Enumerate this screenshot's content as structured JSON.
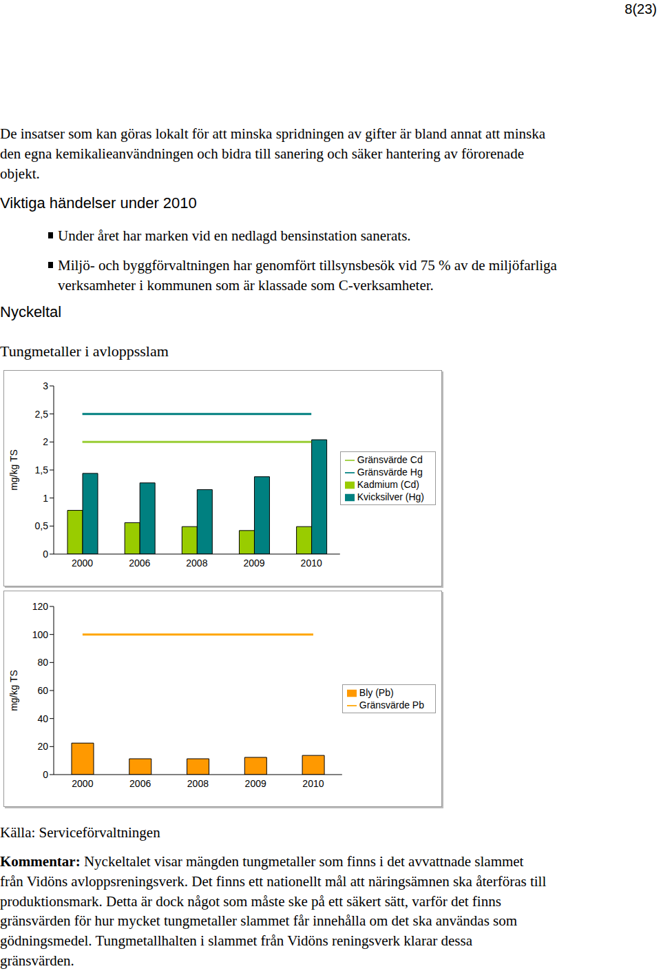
{
  "page_number": "8(23)",
  "intro": [
    "De insatser som kan göras lokalt för att minska spridningen av gifter är bland annat att minska",
    "den egna kemikalieanvändningen och bidra till sanering och säker hantering av förorenade",
    "objekt."
  ],
  "heading": "Viktiga händelser under 2010",
  "bullets": [
    [
      "Under året har marken vid en nedlagd bensinstation sanerats."
    ],
    [
      "Miljö- och byggförvaltningen har genomfört tillsynsbesök vid 75 % av de miljöfarliga",
      "verksamheter i kommunen som är klassade som C-verksamheter."
    ]
  ],
  "section": "Nyckeltal",
  "chart_heading": "Tungmetaller i avloppsslam",
  "chart_data": [
    {
      "type": "bar",
      "y_label": "mg/kg TS",
      "categories": [
        "2000",
        "2006",
        "2008",
        "2009",
        "2010"
      ],
      "series": [
        {
          "name": "Kadmium (Cd)",
          "type": "bar",
          "color": "#99cc00",
          "values": [
            0.78,
            0.56,
            0.49,
            0.42,
            0.49
          ]
        },
        {
          "name": "Kvicksilver (Hg)",
          "type": "bar",
          "color": "#008080",
          "values": [
            1.44,
            1.27,
            1.15,
            1.38,
            2.04
          ]
        },
        {
          "name": "Gränsvärde Cd",
          "type": "line",
          "color": "#99cc33",
          "values": [
            2,
            2,
            2,
            2,
            2
          ]
        },
        {
          "name": "Gränsvärde Hg",
          "type": "line",
          "color": "#008080",
          "values": [
            2.5,
            2.5,
            2.5,
            2.5,
            2.5
          ]
        }
      ],
      "ylim": [
        0,
        3
      ],
      "yticks": [
        0,
        {
          "value": 0.5,
          "label": "0,5"
        },
        1,
        {
          "value": 1.5,
          "label": "1,5"
        },
        2,
        {
          "value": 2.5,
          "label": "2,5"
        },
        3
      ],
      "grid": false,
      "legend": "right"
    },
    {
      "type": "bar",
      "y_label": "mg/kg TS",
      "categories": [
        "2000",
        "2006",
        "2008",
        "2009",
        "2010"
      ],
      "series": [
        {
          "name": "Bly (Pb)",
          "type": "bar",
          "color": "#ff9900",
          "values": [
            22.5,
            11.3,
            11.3,
            12.3,
            13.7
          ]
        },
        {
          "name": "Gränsvärde Pb",
          "type": "line",
          "color": "#ffa500",
          "values": [
            100,
            100,
            100,
            100,
            100
          ]
        }
      ],
      "ylim": [
        0,
        120
      ],
      "yticks": [
        0,
        20,
        40,
        60,
        80,
        100,
        120
      ],
      "grid": false,
      "legend": "right"
    }
  ],
  "source": "Källa: Serviceförvaltningen",
  "comment": {
    "label": "Kommentar:",
    "lines": [
      " Nyckeltalet visar mängden tungmetaller som finns i det avvattnade slammet",
      "från Vidöns avloppsreningsverk. Det finns ett nationellt mål att näringsämnen ska återföras till",
      "produktionsmark. Detta är dock något som måste ske på ett säkert sätt, varför det finns",
      "gränsvärden för hur mycket tungmetaller slammet får innehålla om det ska användas som",
      "gödningsmedel. Tungmetallhalten i slammet från Vidöns reningsverk klarar dessa",
      "gränsvärden."
    ]
  }
}
